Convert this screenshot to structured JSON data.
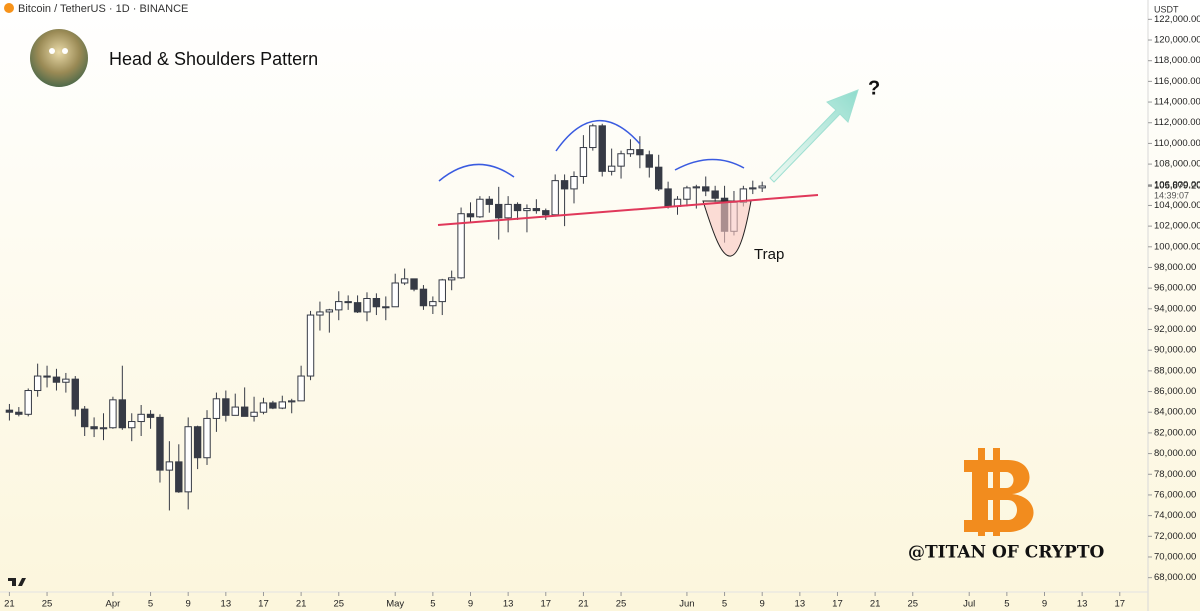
{
  "chart_data": {
    "type": "candlestick",
    "symbol": "Bitcoin / TetherUS · 1D · BINANCE",
    "title": "Head & Shoulders Pattern",
    "currency": "USDT",
    "annotations": [
      "Trap",
      "?",
      "@TITAN OF CRYPTO"
    ],
    "price_label": {
      "value": 105879.2,
      "label": "105,879.20"
    },
    "countdown": "14:39:07",
    "up_color": "#ffffff",
    "down_color": "#363a45",
    "x": [
      "03-21",
      "03-22",
      "03-23",
      "03-24",
      "03-25",
      "03-26",
      "03-27",
      "03-28",
      "03-29",
      "03-30",
      "03-31",
      "04-01",
      "04-02",
      "04-03",
      "04-04",
      "04-05",
      "04-06",
      "04-07",
      "04-08",
      "04-09",
      "04-10",
      "04-11",
      "04-12",
      "04-13",
      "04-14",
      "04-15",
      "04-16",
      "04-17",
      "04-18",
      "04-19",
      "04-20",
      "04-21",
      "04-22",
      "04-23",
      "04-24",
      "04-25",
      "04-26",
      "04-27",
      "04-28",
      "04-29",
      "04-30",
      "05-01",
      "05-02",
      "05-03",
      "05-04",
      "05-05",
      "05-06",
      "05-07",
      "05-08",
      "05-09",
      "05-10",
      "05-11",
      "05-12",
      "05-13",
      "05-14",
      "05-15",
      "05-16",
      "05-17",
      "05-18",
      "05-19",
      "05-20",
      "05-21",
      "05-22",
      "05-23",
      "05-24",
      "05-25",
      "05-26",
      "05-27",
      "05-28",
      "05-29",
      "05-30",
      "05-31",
      "06-01",
      "06-02",
      "06-03",
      "06-04",
      "06-05",
      "06-06",
      "06-07",
      "06-08",
      "06-09"
    ],
    "open": [
      84200,
      84000,
      83800,
      86100,
      87500,
      87400,
      86900,
      87200,
      84300,
      82600,
      82400,
      82500,
      85200,
      82500,
      83100,
      83800,
      83500,
      78400,
      79200,
      76300,
      82600,
      79600,
      83400,
      85300,
      83700,
      84500,
      83600,
      84000,
      84900,
      84400,
      85000,
      85100,
      87500,
      93400,
      93700,
      93900,
      94700,
      94600,
      93700,
      95000,
      94200,
      94200,
      96500,
      96900,
      95900,
      94300,
      94700,
      96800,
      97000,
      103200,
      102900,
      104600,
      104100,
      102800,
      104100,
      103500,
      103700,
      103500,
      103100,
      106400,
      105600,
      106800,
      109600,
      111700,
      107300,
      107800,
      109000,
      109400,
      108900,
      107700,
      105600,
      103900,
      104600,
      105700,
      105800,
      105400,
      104700,
      101500,
      104300,
      105600,
      105700
    ],
    "high": [
      84800,
      84500,
      86300,
      88700,
      88500,
      88200,
      87800,
      87500,
      84600,
      83500,
      83900,
      85500,
      88500,
      83900,
      84700,
      84200,
      83800,
      81200,
      80900,
      83500,
      82700,
      84200,
      85900,
      86100,
      85800,
      86400,
      85500,
      85400,
      85100,
      85600,
      85300,
      88500,
      93800,
      94700,
      94000,
      95700,
      95300,
      95300,
      95600,
      95500,
      95200,
      97400,
      97900,
      96900,
      96300,
      95200,
      96900,
      97700,
      103800,
      104300,
      104900,
      104900,
      105800,
      104900,
      104300,
      104100,
      104600,
      103700,
      107000,
      107000,
      107300,
      110800,
      111900,
      111900,
      109500,
      109300,
      110400,
      110700,
      109300,
      108900,
      106300,
      104900,
      105900,
      106000,
      106800,
      105900,
      105900,
      105400,
      105900,
      106400,
      106300
    ],
    "low": [
      83200,
      83600,
      83600,
      85500,
      86400,
      86100,
      85900,
      83600,
      81700,
      81600,
      81300,
      82400,
      82300,
      81200,
      81700,
      82400,
      77200,
      74500,
      76200,
      74600,
      78500,
      78900,
      82100,
      83100,
      83700,
      83600,
      83100,
      83800,
      84300,
      84300,
      83900,
      85100,
      87100,
      91900,
      91700,
      92900,
      93900,
      93600,
      92800,
      93400,
      92900,
      94200,
      96300,
      95700,
      93900,
      93500,
      93400,
      95800,
      96900,
      102300,
      102800,
      103300,
      100700,
      101400,
      102600,
      101400,
      103200,
      102600,
      103000,
      102000,
      104200,
      106100,
      109300,
      106800,
      106900,
      106600,
      108700,
      107600,
      106700,
      105400,
      103700,
      103100,
      103900,
      103700,
      104900,
      104200,
      100400,
      101100,
      103900,
      105100,
      105300
    ],
    "close": [
      84000,
      83800,
      86100,
      87500,
      87400,
      86900,
      87200,
      84300,
      82600,
      82400,
      82500,
      85200,
      82500,
      83100,
      83800,
      83500,
      78400,
      79200,
      76300,
      82600,
      79600,
      83400,
      85300,
      83700,
      84500,
      83600,
      84000,
      84900,
      84400,
      85000,
      85100,
      87500,
      93400,
      93700,
      93900,
      94700,
      94600,
      93700,
      95000,
      94200,
      94200,
      96500,
      96900,
      95900,
      94300,
      94700,
      96800,
      97000,
      103200,
      102900,
      104600,
      104100,
      102800,
      104100,
      103500,
      103700,
      103500,
      103100,
      106400,
      105600,
      106800,
      109600,
      111700,
      107300,
      107800,
      109000,
      109400,
      108900,
      107700,
      105600,
      103900,
      104600,
      105700,
      105800,
      105400,
      104700,
      101500,
      104300,
      105600,
      105700,
      105880
    ],
    "xlim": [
      "03-20",
      "07-20"
    ],
    "xticks": [
      {
        "value": "03-21",
        "label": "21"
      },
      {
        "value": "03-25",
        "label": "25"
      },
      {
        "value": "04-01",
        "label": "Apr"
      },
      {
        "value": "04-05",
        "label": "5"
      },
      {
        "value": "04-09",
        "label": "9"
      },
      {
        "value": "04-13",
        "label": "13"
      },
      {
        "value": "04-17",
        "label": "17"
      },
      {
        "value": "04-21",
        "label": "21"
      },
      {
        "value": "04-25",
        "label": "25"
      },
      {
        "value": "05-01",
        "label": "May"
      },
      {
        "value": "05-05",
        "label": "5"
      },
      {
        "value": "05-09",
        "label": "9"
      },
      {
        "value": "05-13",
        "label": "13"
      },
      {
        "value": "05-17",
        "label": "17"
      },
      {
        "value": "05-21",
        "label": "21"
      },
      {
        "value": "05-25",
        "label": "25"
      },
      {
        "value": "06-01",
        "label": "Jun"
      },
      {
        "value": "06-05",
        "label": "5"
      },
      {
        "value": "06-09",
        "label": "9"
      },
      {
        "value": "06-13",
        "label": "13"
      },
      {
        "value": "06-17",
        "label": "17"
      },
      {
        "value": "06-21",
        "label": "21"
      },
      {
        "value": "06-25",
        "label": "25"
      },
      {
        "value": "07-01",
        "label": "Jul"
      },
      {
        "value": "07-05",
        "label": "5"
      },
      {
        "value": "07-09",
        "label": "9"
      },
      {
        "value": "07-13",
        "label": "13"
      },
      {
        "value": "07-17",
        "label": "17"
      }
    ],
    "ylim": [
      67000,
      123000
    ],
    "yticks": [
      {
        "value": 68000,
        "label": "68,000.00"
      },
      {
        "value": 70000,
        "label": "70,000.00"
      },
      {
        "value": 72000,
        "label": "72,000.00"
      },
      {
        "value": 74000,
        "label": "74,000.00"
      },
      {
        "value": 76000,
        "label": "76,000.00"
      },
      {
        "value": 78000,
        "label": "78,000.00"
      },
      {
        "value": 80000,
        "label": "80,000.00"
      },
      {
        "value": 82000,
        "label": "82,000.00"
      },
      {
        "value": 84000,
        "label": "84,000.00"
      },
      {
        "value": 86000,
        "label": "86,000.00"
      },
      {
        "value": 88000,
        "label": "88,000.00"
      },
      {
        "value": 90000,
        "label": "90,000.00"
      },
      {
        "value": 92000,
        "label": "92,000.00"
      },
      {
        "value": 94000,
        "label": "94,000.00"
      },
      {
        "value": 96000,
        "label": "96,000.00"
      },
      {
        "value": 98000,
        "label": "98,000.00"
      },
      {
        "value": 100000,
        "label": "100,000.00"
      },
      {
        "value": 102000,
        "label": "102,000.00"
      },
      {
        "value": 104000,
        "label": "104,000.00"
      },
      {
        "value": 106000,
        "label": "106,000.00"
      },
      {
        "value": 108000,
        "label": "108,000.00"
      },
      {
        "value": 110000,
        "label": "110,000.00"
      },
      {
        "value": 112000,
        "label": "112,000.00"
      },
      {
        "value": 114000,
        "label": "114,000.00"
      },
      {
        "value": 116000,
        "label": "116,000.00"
      },
      {
        "value": 118000,
        "label": "118,000.00"
      },
      {
        "value": 120000,
        "label": "120,000.00"
      },
      {
        "value": 122000,
        "label": "122,000.00"
      }
    ]
  }
}
